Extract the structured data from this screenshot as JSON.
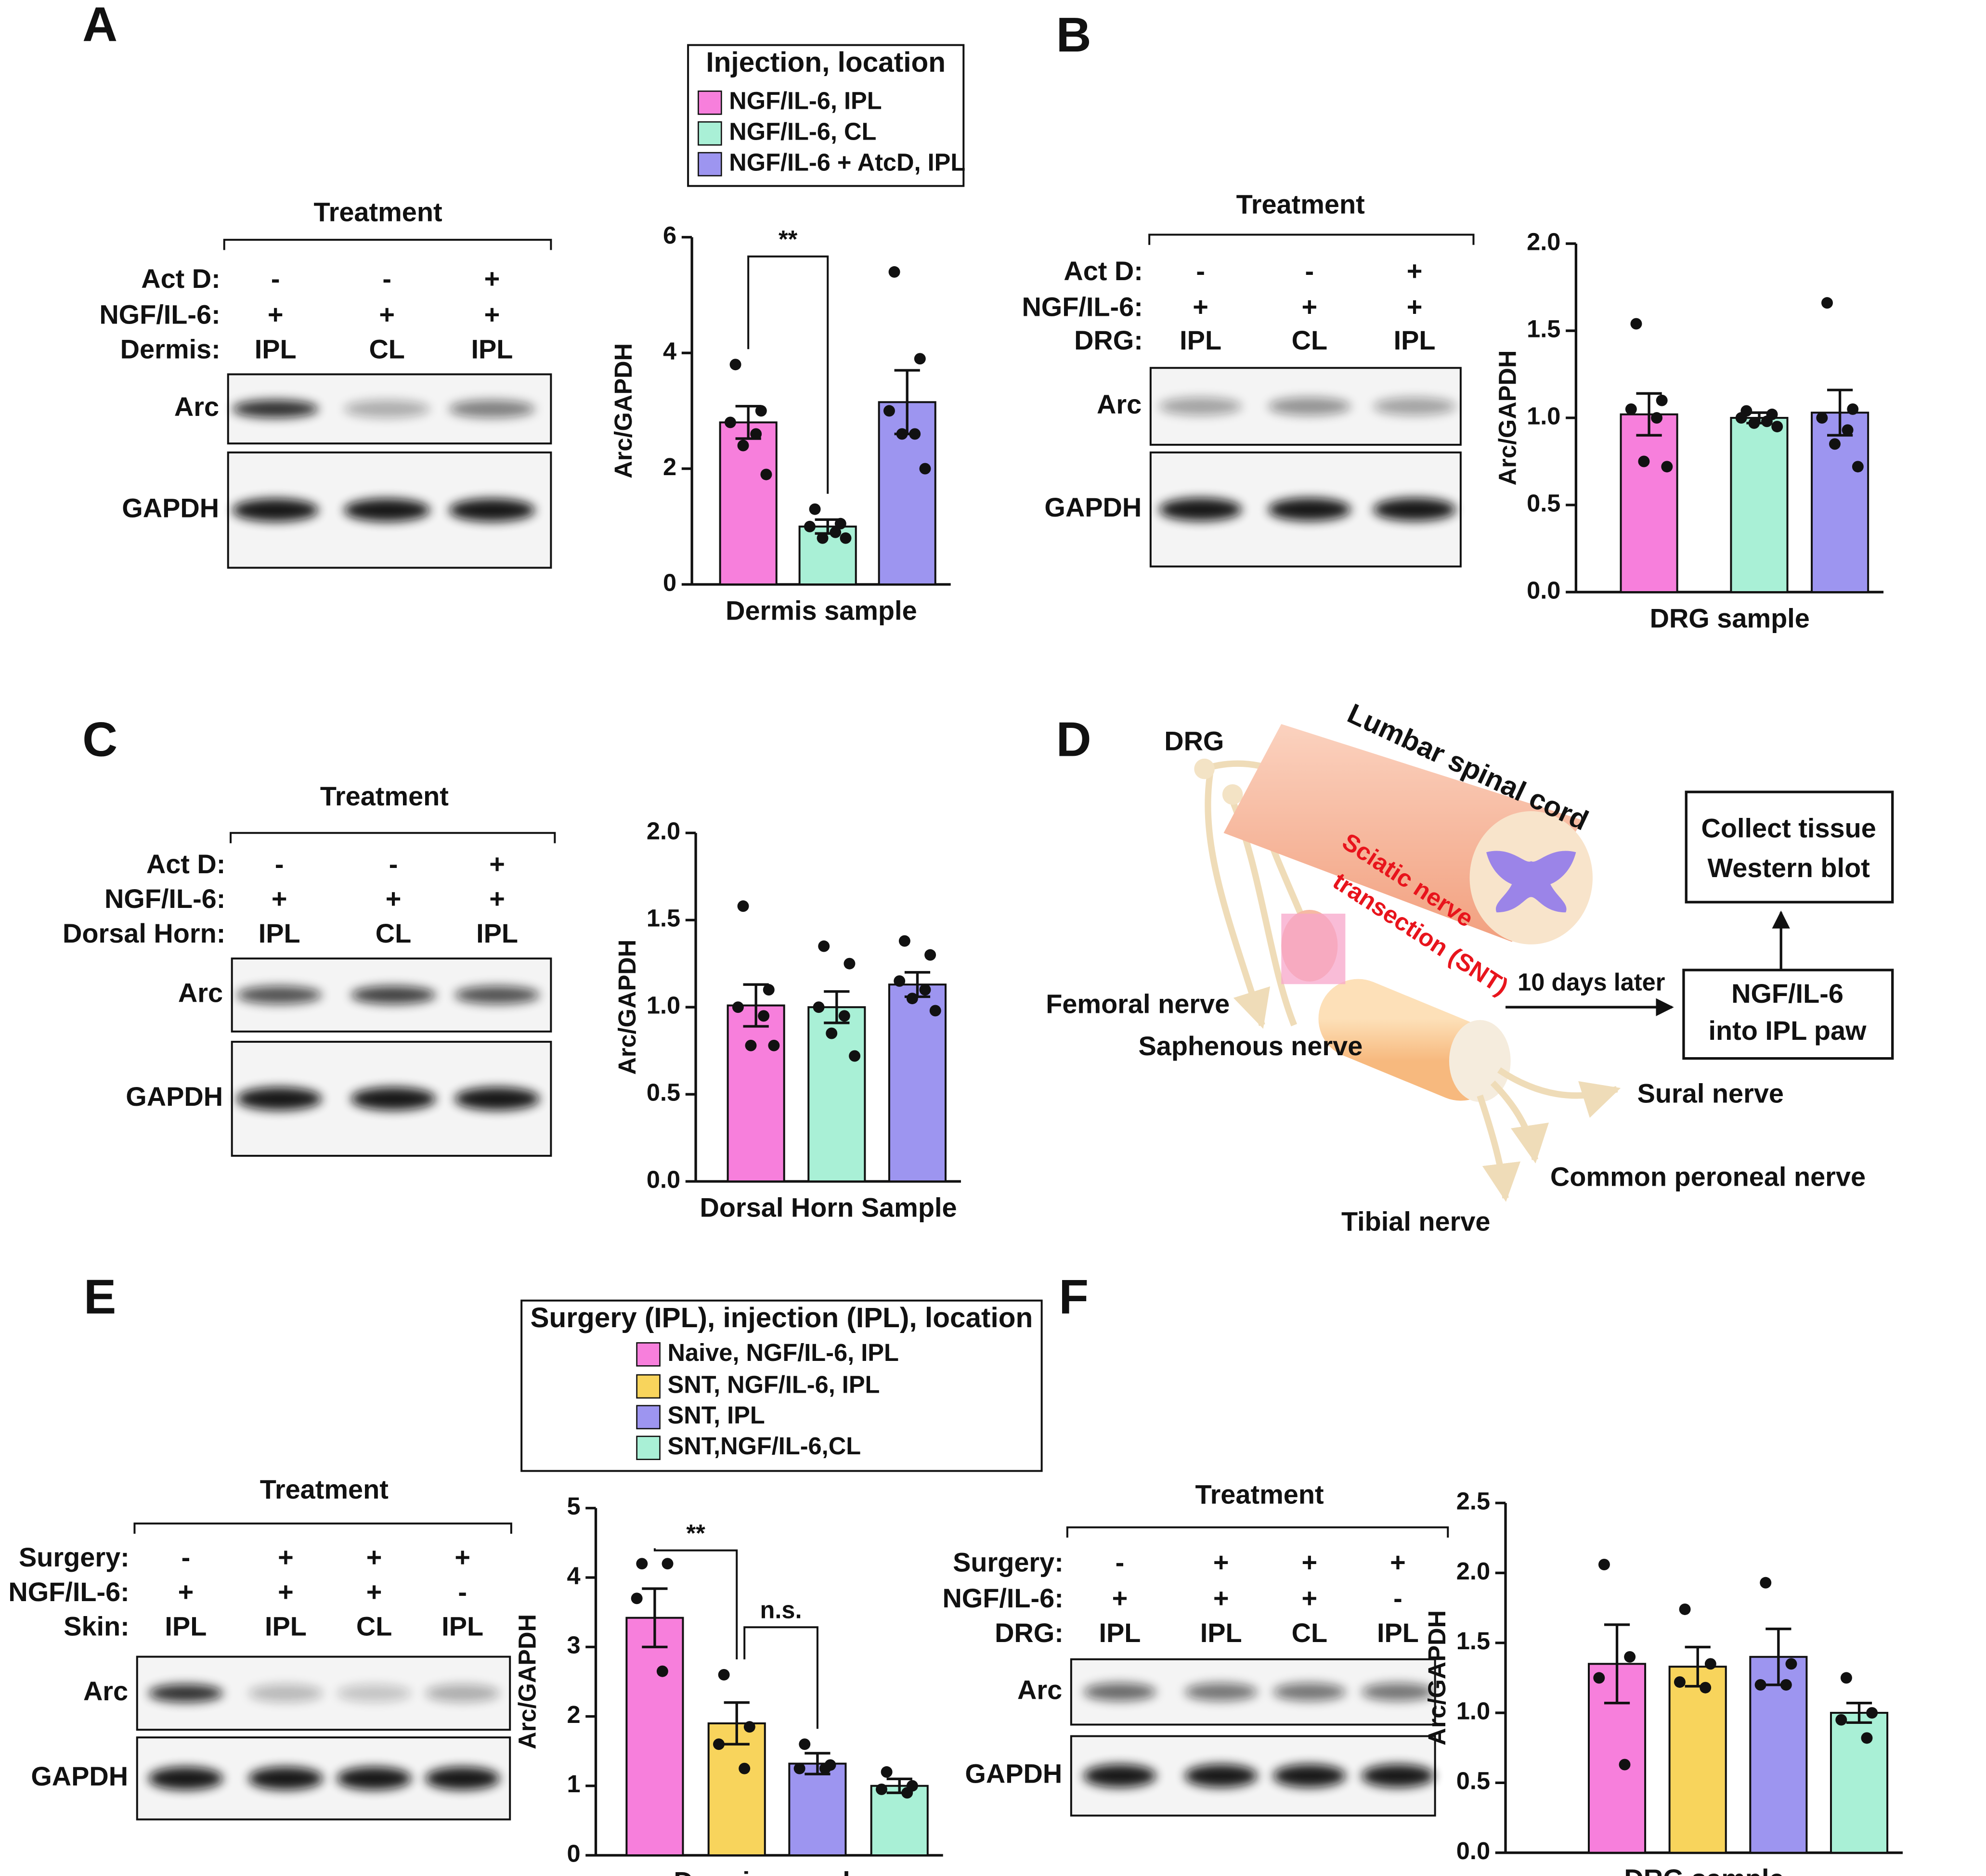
{
  "panels": [
    "A",
    "B",
    "C",
    "D",
    "E",
    "F"
  ],
  "chart_data": [
    {
      "type": "bar",
      "ylabel": "Arc/GAPDH",
      "xlabel": "Dermis sample",
      "ylim": [
        0,
        6
      ],
      "yticks": [
        0,
        2,
        4,
        6
      ],
      "legend": {
        "title": "Injection, location",
        "names": [
          "NGF/IL-6, IPL",
          "NGF/IL-6, CL",
          "NGF/IL-6 + AtcD, IPL"
        ]
      },
      "colors": [
        "#f77fdc",
        "#a9f0d6",
        "#9d95f0"
      ],
      "values": [
        2.8,
        1.0,
        3.15
      ],
      "errors": [
        0.28,
        0.12,
        0.55
      ],
      "points": [
        [
          3.8,
          3.0,
          2.8,
          2.6,
          2.4,
          1.9
        ],
        [
          1.3,
          1.05,
          1.0,
          0.9,
          0.8,
          0.8
        ],
        [
          5.4,
          3.9,
          3.0,
          2.6,
          2.6,
          2.0
        ]
      ],
      "annotations": [
        {
          "text": "**",
          "between": [
            0,
            1
          ]
        }
      ]
    },
    {
      "type": "bar",
      "ylabel": "Arc/GAPDH",
      "xlabel": "DRG sample",
      "ylim": [
        0,
        2
      ],
      "yticks": [
        {
          "value": 0,
          "label": "0.0"
        },
        0.5,
        {
          "value": 1,
          "label": "1.0"
        },
        1.5,
        {
          "value": 2,
          "label": "2.0"
        }
      ],
      "colors": [
        "#f77fdc",
        "#a9f0d6",
        "#9d95f0"
      ],
      "values": [
        1.02,
        1.0,
        1.03
      ],
      "errors": [
        0.12,
        0.03,
        0.13
      ],
      "points": [
        [
          1.54,
          1.1,
          1.05,
          1.0,
          0.75,
          0.72
        ],
        [
          1.04,
          1.02,
          1.0,
          0.98,
          0.97,
          0.95
        ],
        [
          1.66,
          1.05,
          1.0,
          0.93,
          0.85,
          0.72
        ]
      ]
    },
    {
      "type": "bar",
      "ylabel": "Arc/GAPDH",
      "xlabel": "Dorsal Horn Sample",
      "ylim": [
        0,
        2
      ],
      "yticks": [
        {
          "value": 0,
          "label": "0.0"
        },
        0.5,
        {
          "value": 1,
          "label": "1.0"
        },
        1.5,
        {
          "value": 2,
          "label": "2.0"
        }
      ],
      "colors": [
        "#f77fdc",
        "#a9f0d6",
        "#9d95f0"
      ],
      "values": [
        1.01,
        1.0,
        1.13
      ],
      "errors": [
        0.12,
        0.09,
        0.07
      ],
      "points": [
        [
          1.58,
          1.1,
          1.0,
          0.95,
          0.78,
          0.78
        ],
        [
          1.35,
          1.25,
          1.0,
          0.95,
          0.85,
          0.72
        ],
        [
          1.38,
          1.3,
          1.15,
          1.1,
          1.05,
          0.98
        ]
      ]
    },
    {
      "type": "bar",
      "ylabel": "Arc/GAPDH",
      "xlabel": "Dermis sample",
      "ylim": [
        0,
        5
      ],
      "yticks": [
        0,
        1,
        2,
        3,
        4,
        5
      ],
      "legend": {
        "title": "Surgery (IPL), injection (IPL), location",
        "names": [
          "Naive, NGF/IL-6, IPL",
          "SNT, NGF/IL-6, IPL",
          "SNT, IPL",
          "SNT,NGF/IL-6,CL"
        ]
      },
      "colors": [
        "#f77fdc",
        "#f8d45c",
        "#9d95f0",
        "#a9f0d6"
      ],
      "values": [
        3.42,
        1.9,
        1.32,
        1.0
      ],
      "errors": [
        0.42,
        0.3,
        0.15,
        0.1
      ],
      "points": [
        [
          4.2,
          4.2,
          3.7,
          2.65
        ],
        [
          2.6,
          1.85,
          1.6,
          1.25
        ],
        [
          1.6,
          1.3,
          1.25,
          1.25
        ],
        [
          1.2,
          1.0,
          0.95,
          0.9
        ]
      ],
      "annotations": [
        {
          "text": "**",
          "between": [
            0,
            1
          ]
        },
        {
          "text": "n.s.",
          "between": [
            1,
            2
          ]
        }
      ]
    },
    {
      "type": "bar",
      "ylabel": "Arc/GAPDH",
      "xlabel": "DRG sample",
      "ylim": [
        0,
        2.5
      ],
      "yticks": [
        {
          "value": 0,
          "label": "0.0"
        },
        0.5,
        {
          "value": 1,
          "label": "1.0"
        },
        1.5,
        {
          "value": 2,
          "label": "2.0"
        },
        2.5
      ],
      "colors": [
        "#f77fdc",
        "#f8d45c",
        "#9d95f0",
        "#a9f0d6"
      ],
      "values": [
        1.35,
        1.33,
        1.4,
        1.0
      ],
      "errors": [
        0.28,
        0.14,
        0.2,
        0.07
      ],
      "points": [
        [
          2.06,
          1.4,
          1.25,
          0.63
        ],
        [
          1.74,
          1.35,
          1.22,
          1.18
        ],
        [
          1.93,
          1.35,
          1.2,
          1.2
        ],
        [
          1.25,
          1.0,
          0.95,
          0.82
        ]
      ]
    }
  ],
  "blots": [
    {
      "title": "Treatment",
      "rows": [
        {
          "label": "Act D:",
          "cells": [
            "-",
            "-",
            "+"
          ]
        },
        {
          "label": "NGF/IL-6:",
          "cells": [
            "+",
            "+",
            "+"
          ]
        },
        {
          "label": "Dermis:",
          "cells": [
            "IPL",
            "CL",
            "IPL"
          ]
        }
      ],
      "bands": [
        "Arc",
        "GAPDH"
      ]
    },
    {
      "title": "Treatment",
      "rows": [
        {
          "label": "Act D:",
          "cells": [
            "-",
            "-",
            "+"
          ]
        },
        {
          "label": "NGF/IL-6:",
          "cells": [
            "+",
            "+",
            "+"
          ]
        },
        {
          "label": "DRG:",
          "cells": [
            "IPL",
            "CL",
            "IPL"
          ]
        }
      ],
      "bands": [
        "Arc",
        "GAPDH"
      ]
    },
    {
      "title": "Treatment",
      "rows": [
        {
          "label": "Act D:",
          "cells": [
            "-",
            "-",
            "+"
          ]
        },
        {
          "label": "NGF/IL-6:",
          "cells": [
            "+",
            "+",
            "+"
          ]
        },
        {
          "label": "Dorsal Horn:",
          "cells": [
            "IPL",
            "CL",
            "IPL"
          ]
        }
      ],
      "bands": [
        "Arc",
        "GAPDH"
      ]
    },
    {
      "title": "Treatment",
      "rows": [
        {
          "label": "Surgery:",
          "cells": [
            "-",
            "+",
            "+",
            "+"
          ]
        },
        {
          "label": "NGF/IL-6:",
          "cells": [
            "+",
            "+",
            "+",
            "-"
          ]
        },
        {
          "label": "Skin:",
          "cells": [
            "IPL",
            "IPL",
            "CL",
            "IPL"
          ]
        }
      ],
      "bands": [
        "Arc",
        "GAPDH"
      ]
    },
    {
      "title": "Treatment",
      "rows": [
        {
          "label": "Surgery:",
          "cells": [
            "-",
            "+",
            "+",
            "+"
          ]
        },
        {
          "label": "NGF/IL-6:",
          "cells": [
            "+",
            "+",
            "+",
            "-"
          ]
        },
        {
          "label": "DRG:",
          "cells": [
            "IPL",
            "IPL",
            "CL",
            "IPL"
          ]
        }
      ],
      "bands": [
        "Arc",
        "GAPDH"
      ]
    }
  ],
  "diagram": {
    "labels": [
      "DRG",
      "Lumbar spinal cord",
      "Femoral nerve",
      "Saphenous nerve",
      "Sural nerve",
      "Common peroneal nerve",
      "Tibial nerve",
      "10 days later"
    ],
    "snt": [
      "Sciatic nerve",
      "transection (SNT)"
    ],
    "boxes": [
      [
        "Collect tissue",
        "Western blot"
      ],
      [
        "NGF/IL-6",
        "into IPL paw"
      ]
    ]
  }
}
